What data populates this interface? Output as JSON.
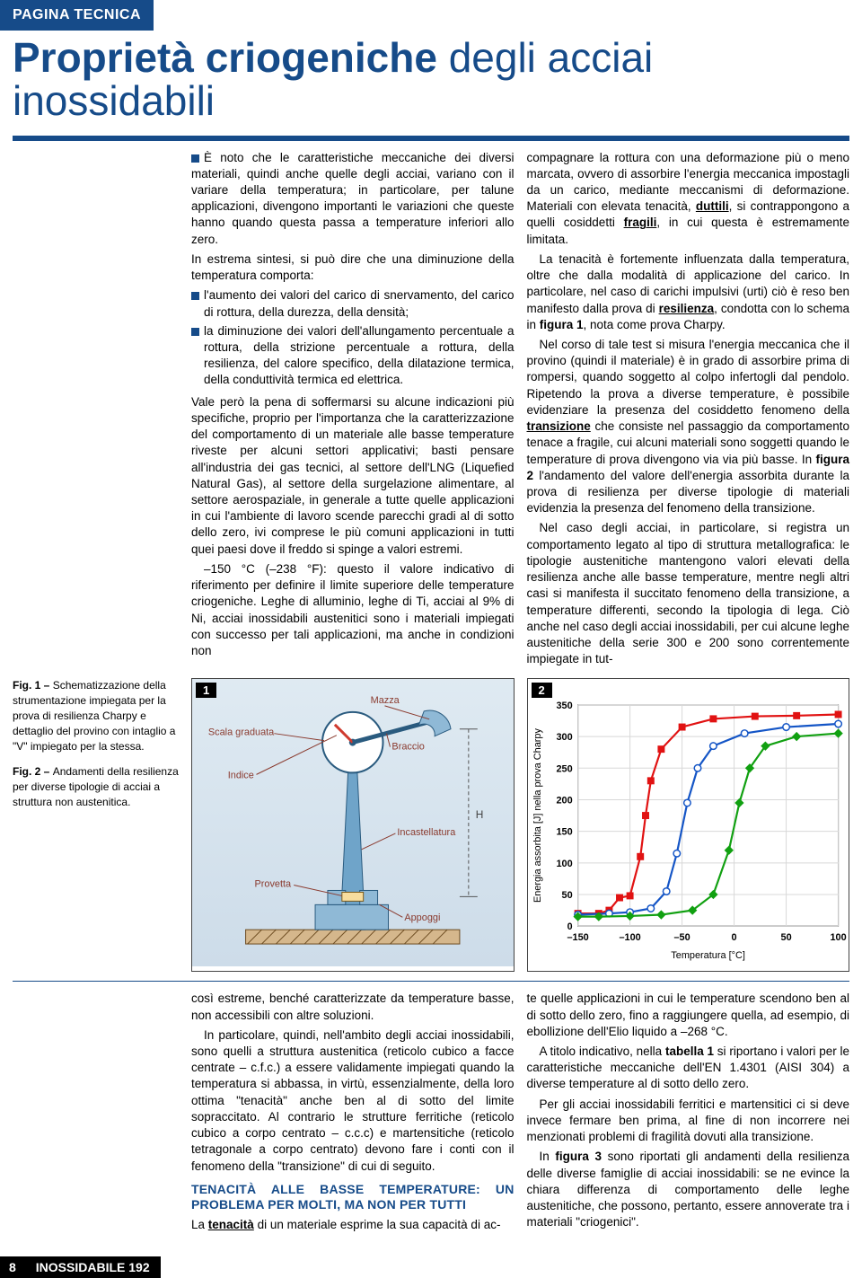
{
  "header": {
    "tab": "PAGINA TECNICA"
  },
  "title": {
    "strong": "Proprietà criogeniche",
    "light": " degli acciai inossidabili"
  },
  "captions": {
    "fig1": {
      "label": "Fig. 1 – ",
      "text": "Schematizzazione della strumentazione impiegata per la prova di resilienza Charpy e dettaglio del provino con intaglio a \"V\" impiegato per la stessa."
    },
    "fig2": {
      "label": "Fig. 2 – ",
      "text": "Andamenti della resilienza per diverse tipologie di acciai a struttura non austenitica."
    }
  },
  "col1": {
    "p1_lead": "➤ ",
    "p1": "È noto che le caratteristiche meccaniche dei diversi materiali, quindi anche quelle degli acciai, variano con il variare della temperatura; in particolare, per talune applicazioni, divengono importanti le variazioni che queste hanno quando questa passa a temperature inferiori allo zero.",
    "p2": "In estrema sintesi, si può dire che una diminuzione della temperatura comporta:",
    "b1": "l'aumento dei valori del carico di snervamento, del carico di rottura, della durezza, della densità;",
    "b2": "la diminuzione dei valori dell'allungamento percentuale a rottura, della strizione percentuale a rottura, della resilienza, del calore specifico, della dilatazione termica, della conduttività termica ed elettrica.",
    "p3": "Vale però la pena di soffermarsi su alcune indicazioni più specifiche, proprio per l'importanza che la caratterizzazione del comportamento di un materiale alle basse temperature riveste per alcuni settori applicativi; basti pensare all'industria dei gas tecnici, al settore dell'LNG (Liquefied Natural Gas), al settore della surgelazione alimentare, al settore aerospaziale, in generale a tutte quelle applicazioni in cui l'ambiente di lavoro scende parecchi gradi al di sotto dello zero, ivi comprese le più comuni applicazioni in tutti quei paesi dove il freddo si spinge a valori estremi.",
    "p4": "–150 °C (–238 °F): questo il valore indicativo di riferimento per definire il limite superiore delle temperature criogeniche. Leghe di alluminio, leghe di Ti, acciai al 9% di Ni, acciai inossidabili austenitici sono i materiali impiegati con successo per tali applicazioni, ma anche in condizioni non"
  },
  "col2": {
    "p1": "compagnare la rottura con una deformazione più o meno marcata, ovvero di assorbire l'energia meccanica impostagli da un carico, mediante meccanismi di deformazione. Materiali con elevata tenacità, ",
    "p1_u1": "duttili",
    "p1b": ", si contrappongono a quelli cosiddetti ",
    "p1_u2": "fragili",
    "p1c": ", in cui questa è estremamente limitata.",
    "p2a": "La tenacità è fortemente influenzata dalla temperatura, oltre che dalla modalità di applicazione del carico. In particolare, nel caso di carichi impulsivi (urti) ciò è reso ben manifesto dalla prova di ",
    "p2_u": "resilienza",
    "p2b": ", condotta con lo schema in ",
    "p2_bold": "figura 1",
    "p2c": ", nota come prova Charpy.",
    "p3a": "Nel corso di tale test si misura l'energia meccanica che il provino (quindi il materiale) è in grado di assorbire prima di rompersi, quando soggetto al colpo infertogli dal pendolo. Ripetendo la prova a diverse temperature, è possibile evidenziare la presenza del cosiddetto fenomeno della ",
    "p3_u": "transizione",
    "p3b": " che consiste nel passaggio da comportamento tenace a fragile, cui alcuni materiali sono soggetti quando le temperature di prova divengono via via più basse. In ",
    "p3_bold": "figura 2",
    "p3c": " l'andamento del valore dell'energia assorbita durante la prova di resilienza per diverse tipologie di materiali evidenzia la presenza del fenomeno della transizione.",
    "p4": "Nel caso degli acciai, in particolare, si registra un comportamento legato al tipo di struttura metallografica: le tipologie austenitiche mantengono valori elevati della resilienza anche alle basse temperature, mentre negli altri casi si manifesta il succitato fenomeno della transizione, a temperature differenti, secondo la tipologia di lega. Ciò anche nel caso degli acciai inossidabili, per cui alcune leghe austenitiche della serie 300 e 200 sono correntemente impiegate in tut-"
  },
  "figbadges": {
    "one": "1",
    "two": "2"
  },
  "charpy_labels": {
    "scala": "Scala graduata",
    "mazza": "Mazza",
    "braccio": "Braccio",
    "indice": "Indice",
    "incastellatura": "Incastellatura",
    "provetta": "Provetta",
    "appoggi": "Appoggi"
  },
  "chart": {
    "y_label": "Energia assorbita [J] nella prova Charpy",
    "x_label": "Temperatura [°C]",
    "xmin": -150,
    "xmax": 100,
    "xtick_step": 50,
    "ymin": 0,
    "ymax": 350,
    "ytick_step": 50,
    "grid_color": "#d8d8d8",
    "axis_color": "#000",
    "series": [
      {
        "name": "s1",
        "color": "#e11212",
        "marker": "square",
        "marker_fill": "#e11212",
        "points": [
          [
            -150,
            20
          ],
          [
            -130,
            20
          ],
          [
            -120,
            25
          ],
          [
            -110,
            45
          ],
          [
            -100,
            48
          ],
          [
            -90,
            110
          ],
          [
            -85,
            175
          ],
          [
            -80,
            230
          ],
          [
            -70,
            280
          ],
          [
            -50,
            315
          ],
          [
            -20,
            328
          ],
          [
            20,
            332
          ],
          [
            60,
            333
          ],
          [
            100,
            335
          ]
        ]
      },
      {
        "name": "s2",
        "color": "#1455c6",
        "marker": "circle",
        "marker_fill": "#ffffff",
        "points": [
          [
            -150,
            18
          ],
          [
            -120,
            20
          ],
          [
            -100,
            22
          ],
          [
            -80,
            28
          ],
          [
            -65,
            55
          ],
          [
            -55,
            115
          ],
          [
            -45,
            195
          ],
          [
            -35,
            250
          ],
          [
            -20,
            285
          ],
          [
            10,
            305
          ],
          [
            50,
            315
          ],
          [
            100,
            320
          ]
        ]
      },
      {
        "name": "s3",
        "color": "#11a011",
        "marker": "diamond",
        "marker_fill": "#11a011",
        "points": [
          [
            -150,
            15
          ],
          [
            -130,
            15
          ],
          [
            -100,
            16
          ],
          [
            -70,
            18
          ],
          [
            -40,
            25
          ],
          [
            -20,
            50
          ],
          [
            -5,
            120
          ],
          [
            5,
            195
          ],
          [
            15,
            250
          ],
          [
            30,
            285
          ],
          [
            60,
            300
          ],
          [
            100,
            305
          ]
        ]
      }
    ]
  },
  "lower_col1": {
    "p1": "così estreme, benché caratterizzate da temperature basse, non accessibili con altre soluzioni.",
    "p2": "In particolare, quindi, nell'ambito degli acciai inossidabili, sono quelli a struttura austenitica (reticolo cubico a facce centrate – c.f.c.) a essere validamente impiegati quando la temperatura si abbassa, in virtù, essenzialmente, della loro ottima \"tenacità\" anche ben al di sotto del limite sopraccitato. Al contrario le strutture ferritiche (reticolo cubico a corpo centrato – c.c.c) e martensitiche (reticolo tetragonale a corpo centrato) devono fare i conti con il fenomeno della \"transizione\" di cui di seguito.",
    "h": "TENACITÀ ALLE BASSE TEMPERATURE: UN PROBLEMA PER MOLTI, MA NON PER TUTTI",
    "p3a": "La ",
    "p3_u": "tenacità",
    "p3b": " di un materiale esprime la sua capacità di ac-"
  },
  "lower_col2": {
    "p1": "te quelle applicazioni in cui le temperature scendono ben al di sotto dello zero, fino a raggiungere quella, ad esempio, di ebollizione dell'Elio liquido a –268 °C.",
    "p2a": "A titolo indicativo, nella ",
    "p2_bold": "tabella 1",
    "p2b": " si riportano i valori per le caratteristiche meccaniche dell'EN 1.4301 (AISI 304) a diverse temperature al di sotto dello zero.",
    "p3": "Per gli acciai inossidabili ferritici e martensitici ci si deve invece fermare ben prima, al fine di non incorrere nei menzionati problemi di fragilità dovuti alla transizione.",
    "p4a": "In ",
    "p4_bold": "figura 3",
    "p4b": " sono riportati gli andamenti della resilienza delle diverse famiglie di acciai inossidabili: se ne evince la chiara differenza di comportamento delle leghe austenitiche, che possono, pertanto, essere annoverate tra i materiali \"criogenici\"."
  },
  "footer": {
    "page": "8",
    "publication": "INOSSIDABILE 192"
  }
}
